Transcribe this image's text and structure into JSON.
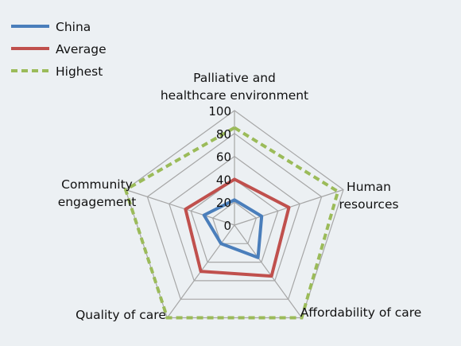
{
  "chart_data": {
    "type": "radar",
    "title": "",
    "axes": [
      {
        "lines": [
          "Palliative and",
          "healthcare environment"
        ]
      },
      {
        "lines": [
          "Human",
          "resources"
        ]
      },
      {
        "lines": [
          "Affordability of care"
        ]
      },
      {
        "lines": [
          "Quality of care"
        ]
      },
      {
        "lines": [
          "Community",
          "engagement"
        ]
      }
    ],
    "r_range": [
      0,
      100
    ],
    "ticks": [
      0,
      20,
      40,
      60,
      80,
      100
    ],
    "tick_labels": [
      "0",
      "20",
      "40",
      "60",
      "80",
      "100"
    ],
    "legend_position": "top-left",
    "series": [
      {
        "name": "China",
        "values": [
          22,
          25,
          35,
          20,
          28
        ],
        "color": "#4a7ebb",
        "style": "solid"
      },
      {
        "name": "Average",
        "values": [
          40,
          50,
          55,
          50,
          45
        ],
        "color": "#c0504d",
        "style": "solid"
      },
      {
        "name": "Highest",
        "values": [
          85,
          95,
          100,
          100,
          100
        ],
        "color": "#9bbb59",
        "style": "dashed"
      }
    ]
  }
}
